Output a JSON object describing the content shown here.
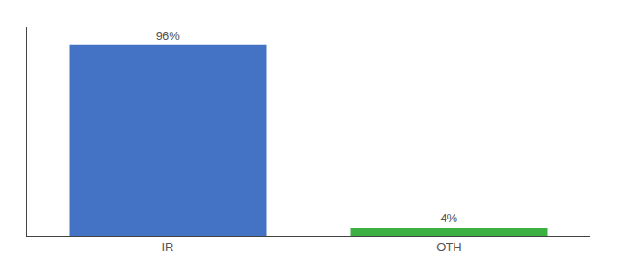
{
  "chart_data": {
    "type": "bar",
    "categories": [
      "IR",
      "OTH"
    ],
    "values": [
      96,
      4
    ],
    "value_labels": [
      "96%",
      "4%"
    ],
    "colors": [
      "#4472C4",
      "#3CB043"
    ],
    "ylim": [
      0,
      105
    ],
    "grid": false,
    "data_labels": true,
    "tick_labels": "x"
  }
}
